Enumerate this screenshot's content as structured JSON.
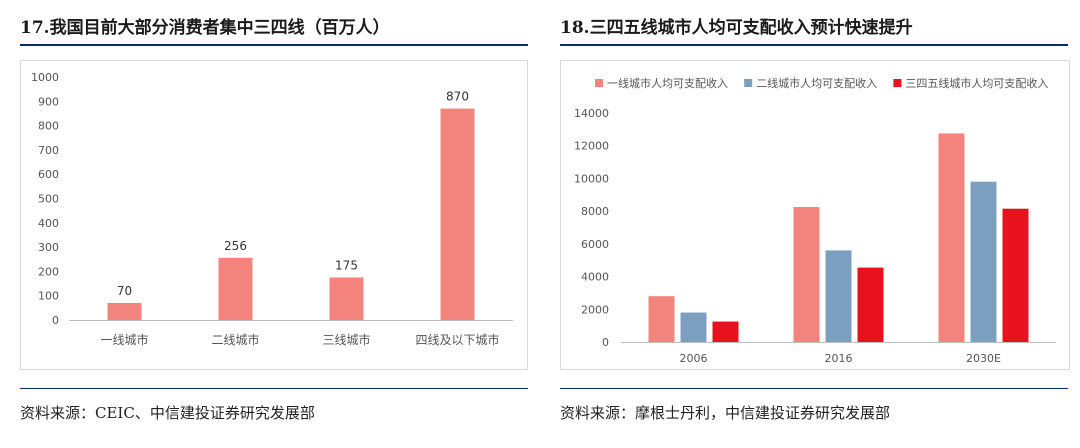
{
  "left_panel": {
    "title": "17.我国目前大部分消费者集中三四线（百万人）",
    "source": "资料来源：CEIC、中信建投证券研究发展部"
  },
  "right_panel": {
    "title": "18.三四五线城市人均可支配收入预计快速提升",
    "source": "资料来源：摩根士丹利，中信建投证券研究发展部"
  },
  "chart_data": [
    {
      "type": "bar",
      "title": "",
      "xlabel": "",
      "ylabel": "",
      "categories": [
        "一线城市",
        "二线城市",
        "三线城市",
        "四线及以下城市"
      ],
      "values": [
        70,
        256,
        175,
        870
      ],
      "data_labels": [
        "70",
        "256",
        "175",
        "870"
      ],
      "ylim": [
        0,
        1000
      ],
      "yticks": [
        0,
        100,
        200,
        300,
        400,
        500,
        600,
        700,
        800,
        900,
        1000
      ],
      "grid": false,
      "color": "#f4837d"
    },
    {
      "type": "bar",
      "title": "",
      "xlabel": "",
      "ylabel": "",
      "categories": [
        "2006",
        "2016",
        "2030E"
      ],
      "series": [
        {
          "name": "一线城市人均可支配收入",
          "values": [
            2800,
            8250,
            12750
          ],
          "color": "#f4837d"
        },
        {
          "name": "二线城市人均可支配收入",
          "values": [
            1800,
            5600,
            9800
          ],
          "color": "#7d9fbf"
        },
        {
          "name": "三四五线城市人均可支配收入",
          "values": [
            1250,
            4550,
            8150
          ],
          "color": "#e8121f"
        }
      ],
      "ylim": [
        0,
        14000
      ],
      "yticks": [
        0,
        2000,
        4000,
        6000,
        8000,
        10000,
        12000,
        14000
      ],
      "legend": "top",
      "grid": false
    }
  ]
}
